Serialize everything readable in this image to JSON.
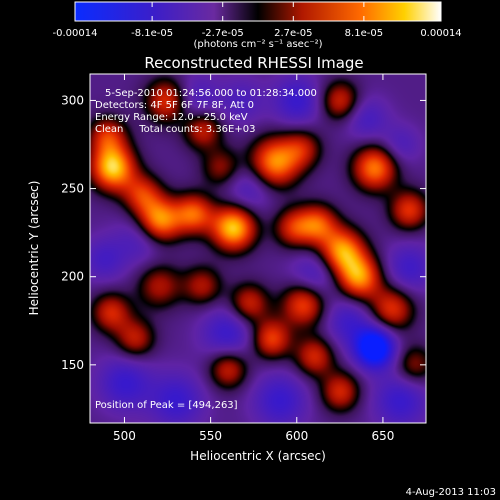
{
  "chart_data": {
    "type": "heatmap",
    "title": "Reconstructed RHESSI Image",
    "xlabel": "Heliocentric X (arcsec)",
    "ylabel": "Heliocentric Y (arcsec)",
    "xlim": [
      480,
      675
    ],
    "ylim": [
      117,
      315
    ],
    "x_ticks": [
      "500",
      "550",
      "600",
      "650"
    ],
    "y_ticks": [
      "150",
      "200",
      "250",
      "300"
    ],
    "colorbar": {
      "ticks": [
        "-0.00014",
        "-8.1e-05",
        "-2.7e-05",
        "2.7e-05",
        "8.1e-05",
        "0.00014"
      ],
      "unit_label": "(photons cm⁻² s⁻¹ asec⁻²)",
      "range": [
        -0.00014,
        0.00014
      ]
    },
    "annotations": [
      "5-Sep-2010 01:24:56.000 to 01:28:34.000",
      "Detectors: 4F 5F 6F 7F 8F, Att 0",
      "Energy Range: 12.0 - 25.0 keV",
      "Clean     Total counts: 3.36E+03"
    ],
    "peak_label": "Position of Peak = [494,263]",
    "peak_position": [
      494,
      263
    ],
    "sources": [
      {
        "x": 493,
        "y": 262,
        "v": 1.0,
        "s": 9
      },
      {
        "x": 490,
        "y": 280,
        "v": 0.55,
        "s": 8
      },
      {
        "x": 510,
        "y": 247,
        "v": 0.55,
        "s": 8
      },
      {
        "x": 525,
        "y": 300,
        "v": 0.65,
        "s": 9
      },
      {
        "x": 545,
        "y": 284,
        "v": 0.55,
        "s": 8
      },
      {
        "x": 520,
        "y": 232,
        "v": 0.9,
        "s": 9
      },
      {
        "x": 540,
        "y": 236,
        "v": 0.7,
        "s": 8
      },
      {
        "x": 563,
        "y": 228,
        "v": 1.0,
        "s": 9
      },
      {
        "x": 556,
        "y": 262,
        "v": 0.4,
        "s": 8
      },
      {
        "x": 587,
        "y": 265,
        "v": 0.85,
        "s": 10
      },
      {
        "x": 603,
        "y": 273,
        "v": 0.45,
        "s": 8
      },
      {
        "x": 598,
        "y": 228,
        "v": 0.55,
        "s": 8
      },
      {
        "x": 612,
        "y": 230,
        "v": 0.65,
        "s": 8
      },
      {
        "x": 626,
        "y": 215,
        "v": 0.85,
        "s": 9
      },
      {
        "x": 636,
        "y": 200,
        "v": 0.85,
        "s": 9
      },
      {
        "x": 625,
        "y": 300,
        "v": 0.55,
        "s": 8
      },
      {
        "x": 645,
        "y": 262,
        "v": 0.8,
        "s": 9
      },
      {
        "x": 665,
        "y": 238,
        "v": 0.6,
        "s": 8
      },
      {
        "x": 492,
        "y": 180,
        "v": 0.55,
        "s": 8
      },
      {
        "x": 520,
        "y": 195,
        "v": 0.45,
        "s": 9
      },
      {
        "x": 545,
        "y": 195,
        "v": 0.45,
        "s": 8
      },
      {
        "x": 572,
        "y": 185,
        "v": 0.55,
        "s": 8
      },
      {
        "x": 604,
        "y": 185,
        "v": 0.7,
        "s": 9
      },
      {
        "x": 585,
        "y": 165,
        "v": 0.65,
        "s": 8
      },
      {
        "x": 610,
        "y": 155,
        "v": 0.55,
        "s": 8
      },
      {
        "x": 506,
        "y": 165,
        "v": 0.5,
        "s": 8
      },
      {
        "x": 560,
        "y": 148,
        "v": 0.55,
        "s": 8
      },
      {
        "x": 625,
        "y": 135,
        "v": 0.55,
        "s": 8
      },
      {
        "x": 655,
        "y": 182,
        "v": 0.6,
        "s": 9
      },
      {
        "x": 668,
        "y": 150,
        "v": 0.4,
        "s": 8
      },
      {
        "x": 540,
        "y": 300,
        "v": -0.35,
        "s": 10
      },
      {
        "x": 610,
        "y": 200,
        "v": -0.35,
        "s": 10
      },
      {
        "x": 572,
        "y": 250,
        "v": -0.3,
        "s": 10
      },
      {
        "x": 510,
        "y": 222,
        "v": -0.3,
        "s": 10
      },
      {
        "x": 560,
        "y": 168,
        "v": -0.4,
        "s": 11
      },
      {
        "x": 645,
        "y": 160,
        "v": -1.0,
        "s": 8
      },
      {
        "x": 630,
        "y": 175,
        "v": -0.35,
        "s": 10
      },
      {
        "x": 500,
        "y": 140,
        "v": -0.4,
        "s": 11
      },
      {
        "x": 530,
        "y": 130,
        "v": -0.4,
        "s": 11
      },
      {
        "x": 590,
        "y": 130,
        "v": -0.4,
        "s": 11
      },
      {
        "x": 660,
        "y": 130,
        "v": -0.4,
        "s": 11
      },
      {
        "x": 665,
        "y": 205,
        "v": -0.35,
        "s": 10
      },
      {
        "x": 600,
        "y": 300,
        "v": -0.4,
        "s": 10
      },
      {
        "x": 568,
        "y": 300,
        "v": -0.25,
        "s": 9
      },
      {
        "x": 488,
        "y": 210,
        "v": -0.3,
        "s": 9
      },
      {
        "x": 640,
        "y": 290,
        "v": -0.3,
        "s": 9
      },
      {
        "x": 660,
        "y": 275,
        "v": -0.25,
        "s": 8
      }
    ]
  },
  "footer_date": "4-Aug-2013 11:03"
}
